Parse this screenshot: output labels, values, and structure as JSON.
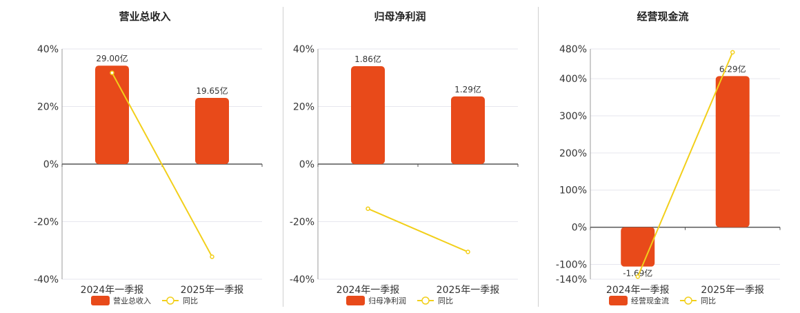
{
  "colors": {
    "bar": "#E84A1A",
    "line": "#F2CF1A",
    "grid": "#e6e6ee",
    "axis": "#555555",
    "text": "#333333"
  },
  "chart_data": [
    {
      "type": "bar",
      "title": "营业总收入",
      "categories": [
        "2024年一季报",
        "2025年一季报"
      ],
      "ylim": [
        -40,
        40
      ],
      "yticks": [
        40,
        20,
        0,
        -20,
        -40
      ],
      "tick_labels": [
        "40%",
        "20%",
        "0%",
        "-20%",
        "-40%"
      ],
      "series": [
        {
          "name": "营业总收入",
          "kind": "bar",
          "values": [
            34.2,
            23.0
          ],
          "labels": [
            "29.00亿",
            "19.65亿"
          ]
        },
        {
          "name": "同比",
          "kind": "line",
          "values": [
            31.7,
            -32.2
          ]
        }
      ],
      "legend": [
        "营业总收入",
        "同比"
      ],
      "legend_position": "bottom-center",
      "grid": true
    },
    {
      "type": "bar",
      "title": "归母净利润",
      "categories": [
        "2024年一季报",
        "2025年一季报"
      ],
      "ylim": [
        -40,
        40
      ],
      "yticks": [
        40,
        20,
        0,
        -20,
        -40
      ],
      "tick_labels": [
        "40%",
        "20%",
        "0%",
        "-20%",
        "-40%"
      ],
      "series": [
        {
          "name": "归母净利润",
          "kind": "bar",
          "values": [
            34.0,
            23.5
          ],
          "labels": [
            "1.86亿",
            "1.29亿"
          ]
        },
        {
          "name": "同比",
          "kind": "line",
          "values": [
            -15.5,
            -30.5
          ]
        }
      ],
      "legend": [
        "归母净利润",
        "同比"
      ],
      "legend_position": "bottom-center",
      "grid": true
    },
    {
      "type": "bar",
      "title": "经营现金流",
      "categories": [
        "2024年一季报",
        "2025年一季报"
      ],
      "ylim": [
        -140,
        480
      ],
      "yticks": [
        480,
        400,
        300,
        200,
        100,
        0,
        -100,
        -140
      ],
      "tick_labels": [
        "480%",
        "400%",
        "300%",
        "200%",
        "100%",
        "0%",
        "-100%",
        "-140%"
      ],
      "series": [
        {
          "name": "经营现金流",
          "kind": "bar",
          "values": [
            -106,
            407
          ],
          "labels": [
            "-1.69亿",
            "6.29亿"
          ]
        },
        {
          "name": "同比",
          "kind": "line",
          "values": [
            -133,
            471
          ]
        }
      ],
      "legend": [
        "经营现金流",
        "同比"
      ],
      "legend_position": "bottom-center",
      "grid": true
    }
  ]
}
